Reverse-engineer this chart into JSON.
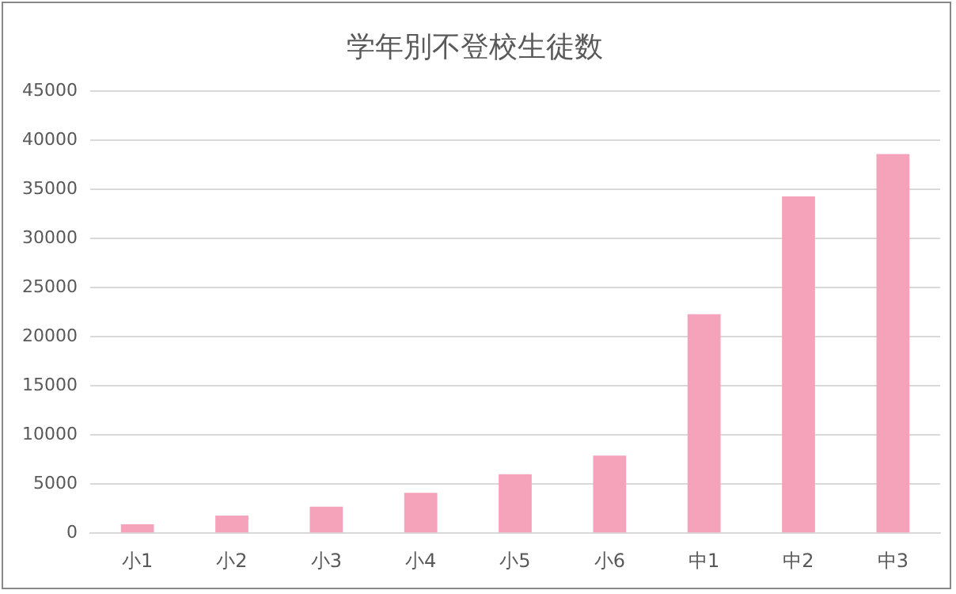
{
  "chart_data": {
    "type": "bar",
    "title": "学年別不登校生徒数",
    "categories": [
      "小1",
      "小2",
      "小3",
      "小4",
      "小5",
      "小6",
      "中1",
      "中2",
      "中3"
    ],
    "values": [
      900,
      1800,
      2700,
      4100,
      6000,
      7900,
      22300,
      34300,
      38600
    ],
    "color": "#f5a3ba",
    "ylim": [
      0,
      45000
    ],
    "yticks": [
      0,
      5000,
      10000,
      15000,
      20000,
      25000,
      30000,
      35000,
      40000,
      45000
    ],
    "grid": "y",
    "legend": false
  }
}
